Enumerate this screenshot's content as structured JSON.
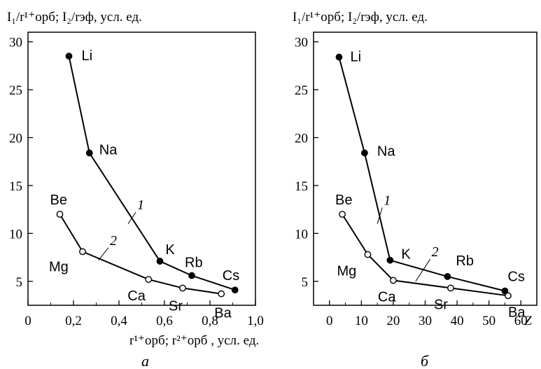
{
  "chart_data": [
    {
      "panel_letter": "а",
      "type": "line",
      "ylabel": "I₁/r¹⁺орб; I₂/rэф,  усл. ед.",
      "xlabel": "r¹⁺орб; r²⁺орб , усл. ед.",
      "xlim": [
        0,
        1.0
      ],
      "ylim": [
        2.5,
        31
      ],
      "xticks": [
        "0",
        "0,2",
        "0,4",
        "0,6",
        "0,8",
        "1,0"
      ],
      "xtick_values": [
        0,
        0.2,
        0.4,
        0.6,
        0.8,
        1.0
      ],
      "yticks": [
        "5",
        "10",
        "15",
        "20",
        "25",
        "30"
      ],
      "ytick_values": [
        5,
        10,
        15,
        20,
        25,
        30
      ],
      "series": [
        {
          "name": "1",
          "marker": "filled",
          "points": [
            {
              "label": "Li",
              "x": 0.18,
              "y": 28.5
            },
            {
              "label": "Na",
              "x": 0.27,
              "y": 18.4
            },
            {
              "label": "K",
              "x": 0.58,
              "y": 7.1
            },
            {
              "label": "Rb",
              "x": 0.72,
              "y": 5.6
            },
            {
              "label": "Cs",
              "x": 0.91,
              "y": 4.1
            }
          ]
        },
        {
          "name": "2",
          "marker": "open",
          "points": [
            {
              "label": "Be",
              "x": 0.14,
              "y": 12.0
            },
            {
              "label": "Mg",
              "x": 0.24,
              "y": 8.1
            },
            {
              "label": "Ca",
              "x": 0.53,
              "y": 5.2
            },
            {
              "label": "Sr",
              "x": 0.68,
              "y": 4.3
            },
            {
              "label": "Ba",
              "x": 0.85,
              "y": 3.7
            }
          ]
        }
      ]
    },
    {
      "panel_letter": "б",
      "type": "line",
      "ylabel": "I₁/r¹⁺орб; I₂/rэф,  усл. ед.",
      "xlabel": "Z",
      "xlim": [
        -5,
        65
      ],
      "ylim": [
        2.5,
        31
      ],
      "xticks": [
        "0",
        "10",
        "20",
        "30",
        "40",
        "50",
        "60"
      ],
      "xtick_values": [
        0,
        10,
        20,
        30,
        40,
        50,
        60
      ],
      "yticks": [
        "5",
        "10",
        "15",
        "20",
        "25",
        "30"
      ],
      "ytick_values": [
        5,
        10,
        15,
        20,
        25,
        30
      ],
      "series": [
        {
          "name": "1",
          "marker": "filled",
          "points": [
            {
              "label": "Li",
              "x": 3,
              "y": 28.4
            },
            {
              "label": "Na",
              "x": 11,
              "y": 18.4
            },
            {
              "label": "K",
              "x": 19,
              "y": 7.2
            },
            {
              "label": "Rb",
              "x": 37,
              "y": 5.5
            },
            {
              "label": "Cs",
              "x": 55,
              "y": 4.0
            }
          ]
        },
        {
          "name": "2",
          "marker": "open",
          "points": [
            {
              "label": "Be",
              "x": 4,
              "y": 12.0
            },
            {
              "label": "Mg",
              "x": 12,
              "y": 7.8
            },
            {
              "label": "Ca",
              "x": 20,
              "y": 5.1
            },
            {
              "label": "Sr",
              "x": 38,
              "y": 4.3
            },
            {
              "label": "Ba",
              "x": 56,
              "y": 3.5
            }
          ]
        }
      ]
    }
  ]
}
